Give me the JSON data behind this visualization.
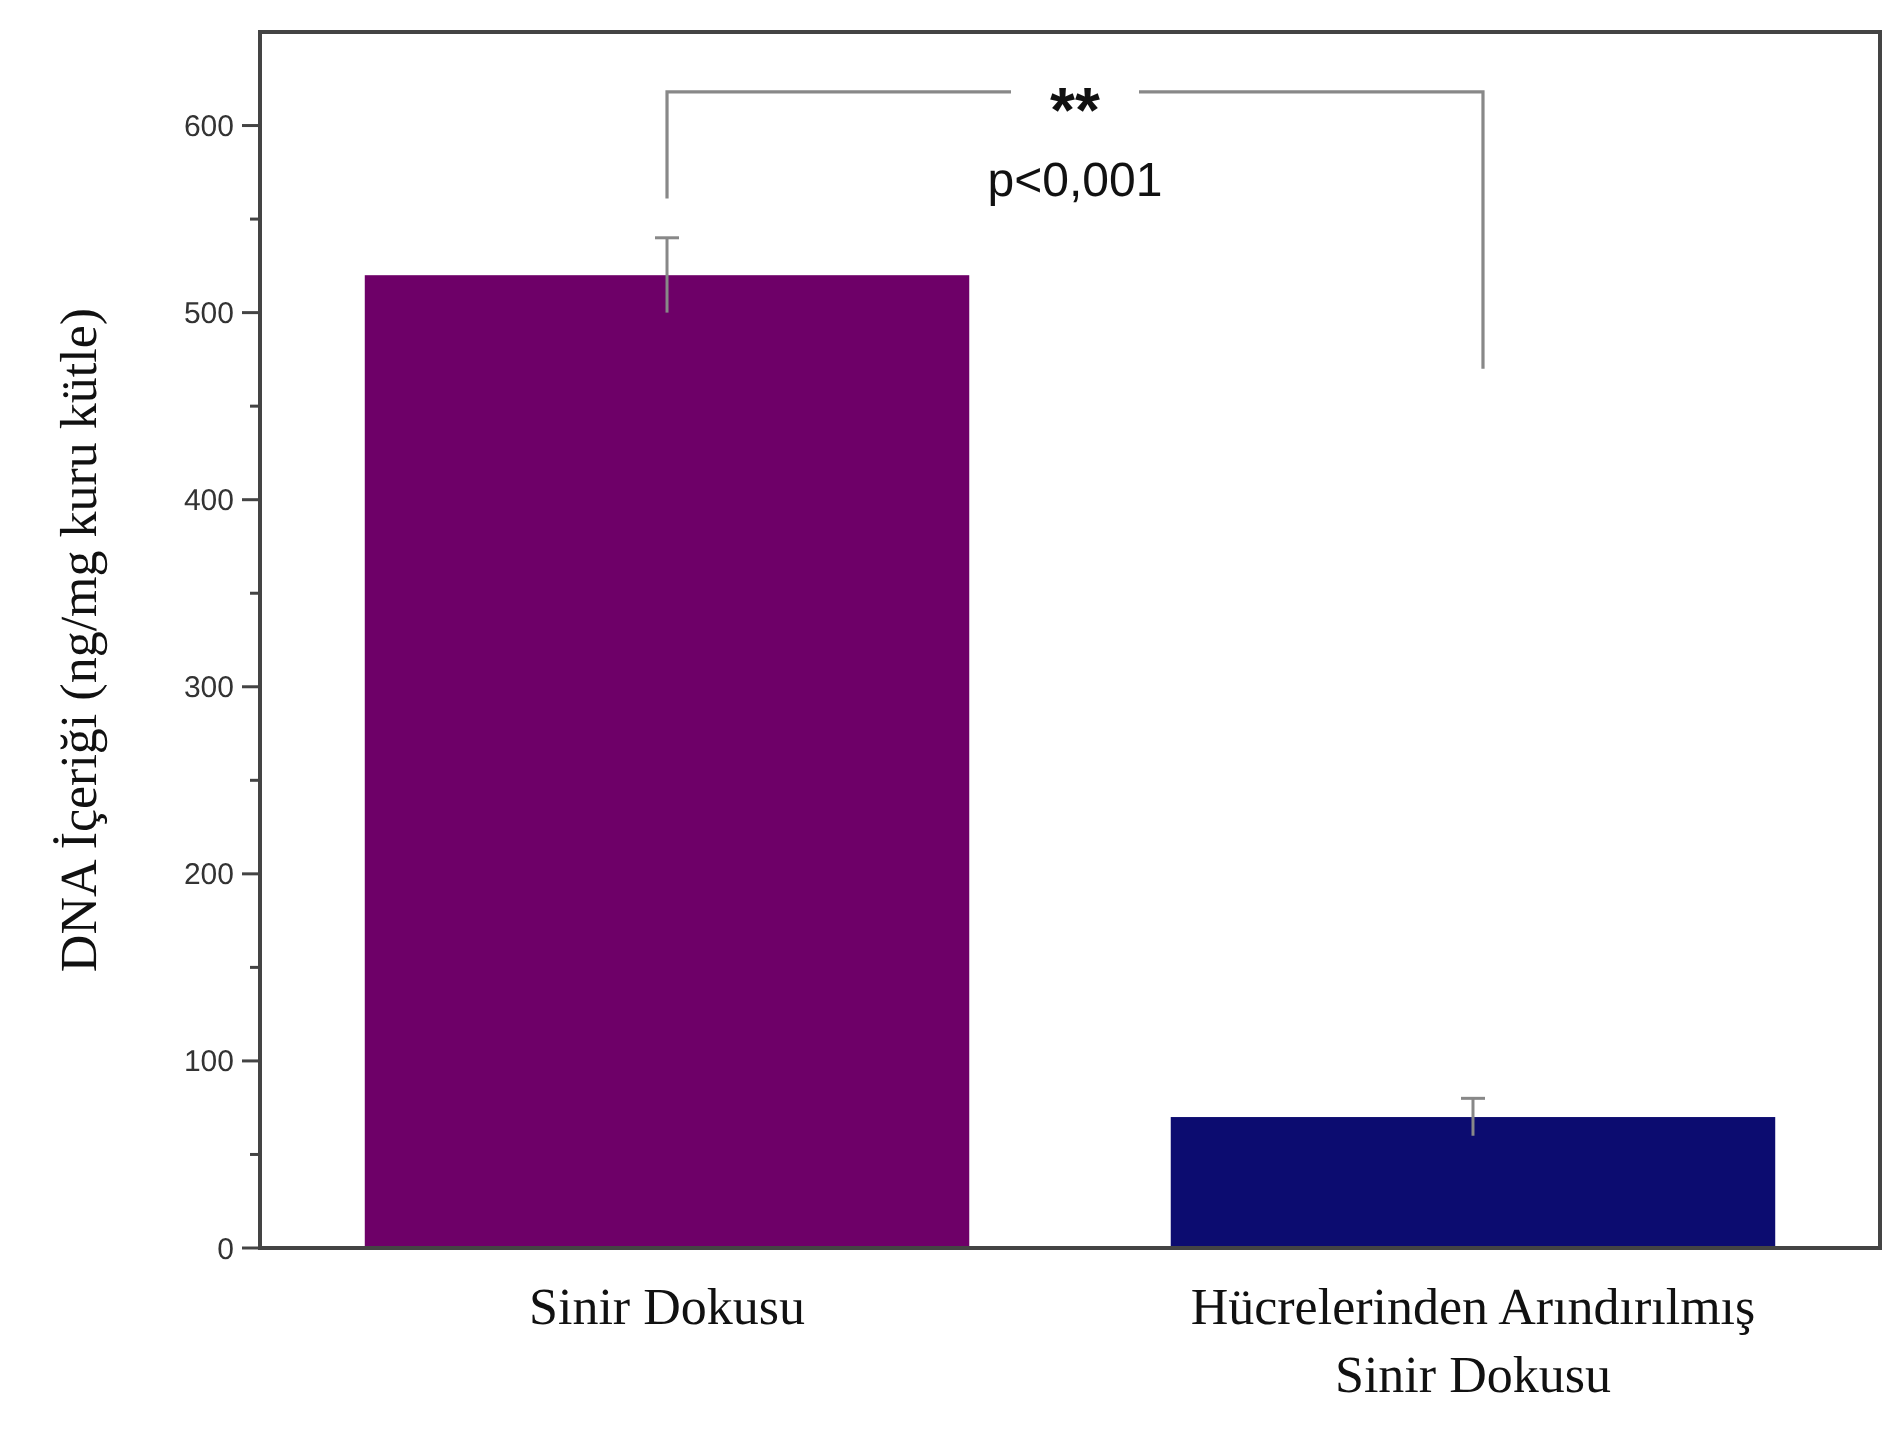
{
  "chart_data": {
    "type": "bar",
    "ylabel": "DNA İçeriği (ng/mg kuru kütle)",
    "categories": [
      "Sinir Dokusu",
      "Hücrelerinden Arındırılmış Sinir Dokusu"
    ],
    "values": [
      520,
      70
    ],
    "colors": [
      "#6e0068",
      "#0c0c70"
    ],
    "errors": [
      20,
      10
    ],
    "ylim": [
      0,
      650
    ],
    "yticks": [
      0,
      {
        "value": 50,
        "label": null
      },
      100,
      {
        "value": 150,
        "label": null
      },
      200,
      {
        "value": 250,
        "label": null
      },
      300,
      {
        "value": 350,
        "label": null
      },
      400,
      {
        "value": 450,
        "label": null
      },
      500,
      {
        "value": 550,
        "label": null
      },
      600
    ],
    "annotations": [
      "**",
      "p<0,001"
    ],
    "grid": false
  }
}
